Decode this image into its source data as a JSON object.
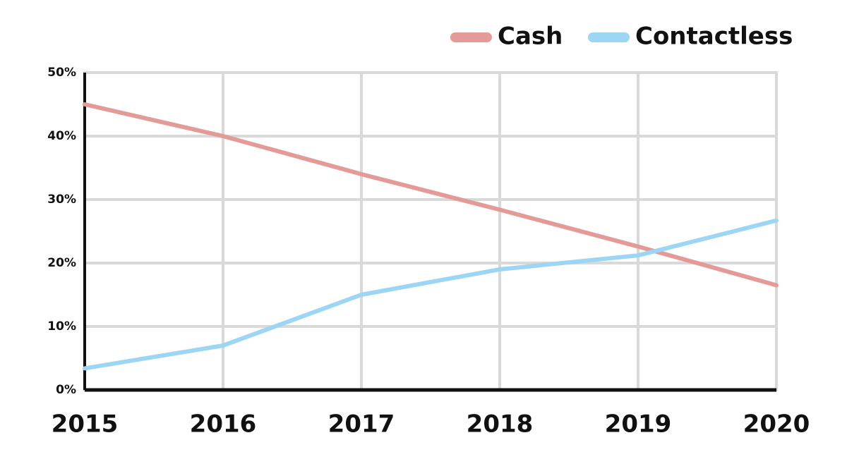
{
  "chart_data": {
    "type": "line",
    "x": [
      2015,
      2016,
      2017,
      2018,
      2019,
      2020
    ],
    "series": [
      {
        "name": "Cash",
        "color": "#e49a96",
        "values": [
          45,
          40,
          34,
          28.4,
          22.6,
          16.5
        ]
      },
      {
        "name": "Contactless",
        "color": "#9dd6f5",
        "values": [
          3.4,
          7,
          15,
          19,
          21.2,
          26.7
        ]
      }
    ],
    "xlim": [
      2015,
      2020
    ],
    "xticks": [
      2015,
      2016,
      2017,
      2018,
      2019,
      2020
    ],
    "ylim": [
      0,
      50
    ],
    "yticks": [
      {
        "value": 0,
        "label": "0%"
      },
      {
        "value": 10,
        "label": "10%"
      },
      {
        "value": 20,
        "label": "20%"
      },
      {
        "value": 30,
        "label": "30%"
      },
      {
        "value": 40,
        "label": "40%"
      },
      {
        "value": 50,
        "label": "50%"
      }
    ],
    "grid": true,
    "legend": "top-right"
  }
}
